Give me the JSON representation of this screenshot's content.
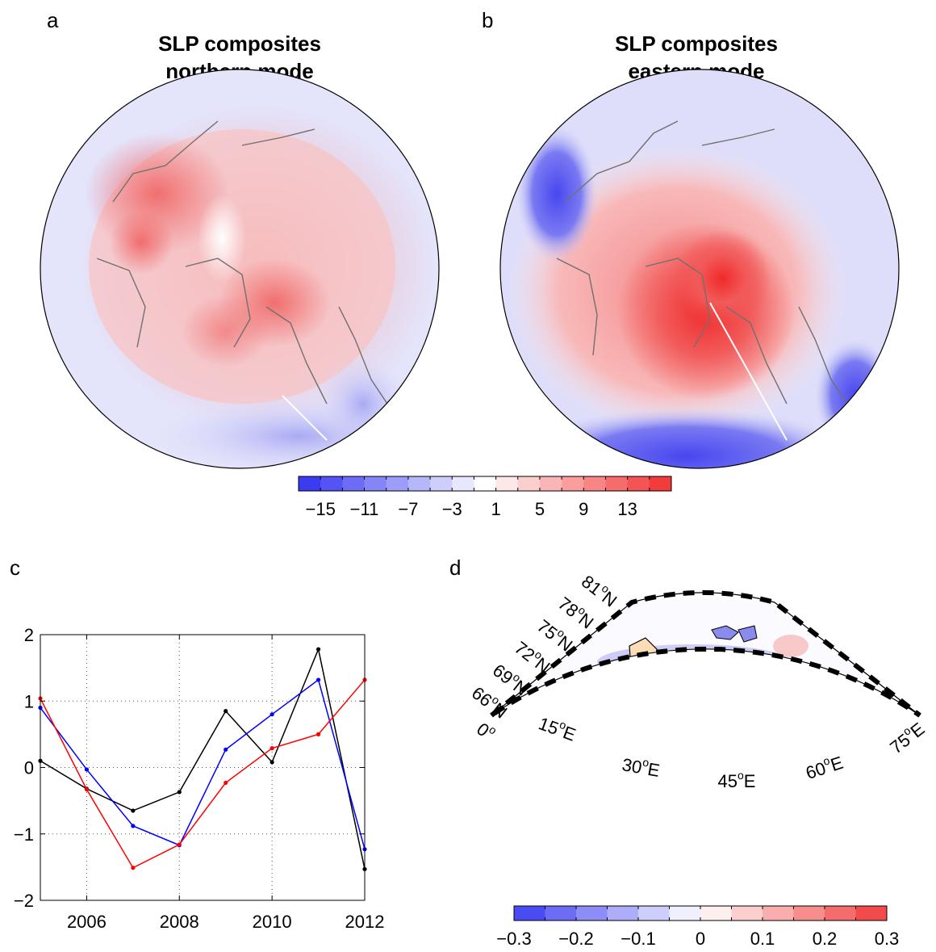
{
  "panels": {
    "a": {
      "letter": "a",
      "title_line1": "SLP composites",
      "title_line2": "northern mode"
    },
    "b": {
      "letter": "b",
      "title_line1": "SLP composites",
      "title_line2": "eastern mode"
    },
    "c": {
      "letter": "c"
    },
    "d": {
      "letter": "d"
    }
  },
  "colors": {
    "negative": "#3b3bf2",
    "neutral": "#ffffff",
    "positive": "#f23b3b",
    "land": "#fcdcb6",
    "coast": "#707070",
    "series_black": "#000000",
    "series_blue": "#0000ff",
    "series_red": "#ff0000"
  },
  "slp_colorbar": {
    "min": -17,
    "max": 17,
    "step": 2,
    "tick_values": [
      -15,
      -11,
      -7,
      -3,
      1,
      5,
      9,
      13
    ],
    "tick_labels": [
      "−15",
      "−11",
      "−7",
      "−3",
      "1",
      "5",
      "9",
      "13"
    ]
  },
  "d_colorbar": {
    "min": -0.3,
    "max": 0.3,
    "step": 0.05,
    "tick_values": [
      -0.3,
      -0.2,
      -0.1,
      0,
      0.1,
      0.2,
      0.3
    ],
    "tick_labels": [
      "−0.3",
      "−0.2",
      "−0.1",
      "0",
      "0.1",
      "0.2",
      "0.3"
    ]
  },
  "map_d_labels": {
    "latitudes": [
      "81",
      "78",
      "75",
      "72",
      "69",
      "66"
    ],
    "lat_suffix": "N",
    "longitudes_bottom": [
      "15",
      "30",
      "45",
      "60"
    ],
    "lon_suffix": "E",
    "lon_start": "0",
    "lon_end": "75",
    "degree": "o"
  },
  "chart_data": [
    {
      "type": "line",
      "panel": "c",
      "x": [
        2005,
        2006,
        2007,
        2008,
        2009,
        2010,
        2011,
        2012
      ],
      "xlim": [
        2005,
        2012
      ],
      "ylim": [
        -2,
        2
      ],
      "xticks": [
        2006,
        2008,
        2010,
        2012
      ],
      "xtick_labels": [
        "2006",
        "2008",
        "2010",
        "2012"
      ],
      "yticks": [
        -2,
        -1,
        0,
        1,
        2
      ],
      "ytick_labels": [
        "−2",
        "−1",
        "0",
        "1",
        "2"
      ],
      "grid": true,
      "series": [
        {
          "color": "#000000",
          "values": [
            0.1,
            -0.32,
            -0.65,
            -0.37,
            0.85,
            0.08,
            1.78,
            -1.53
          ]
        },
        {
          "color": "#0000ff",
          "values": [
            0.9,
            -0.03,
            -0.88,
            -1.17,
            0.27,
            0.8,
            1.32,
            -1.23
          ]
        },
        {
          "color": "#ff0000",
          "values": [
            1.04,
            -0.33,
            -1.51,
            -1.16,
            -0.23,
            0.29,
            0.5,
            1.32
          ]
        }
      ]
    }
  ]
}
